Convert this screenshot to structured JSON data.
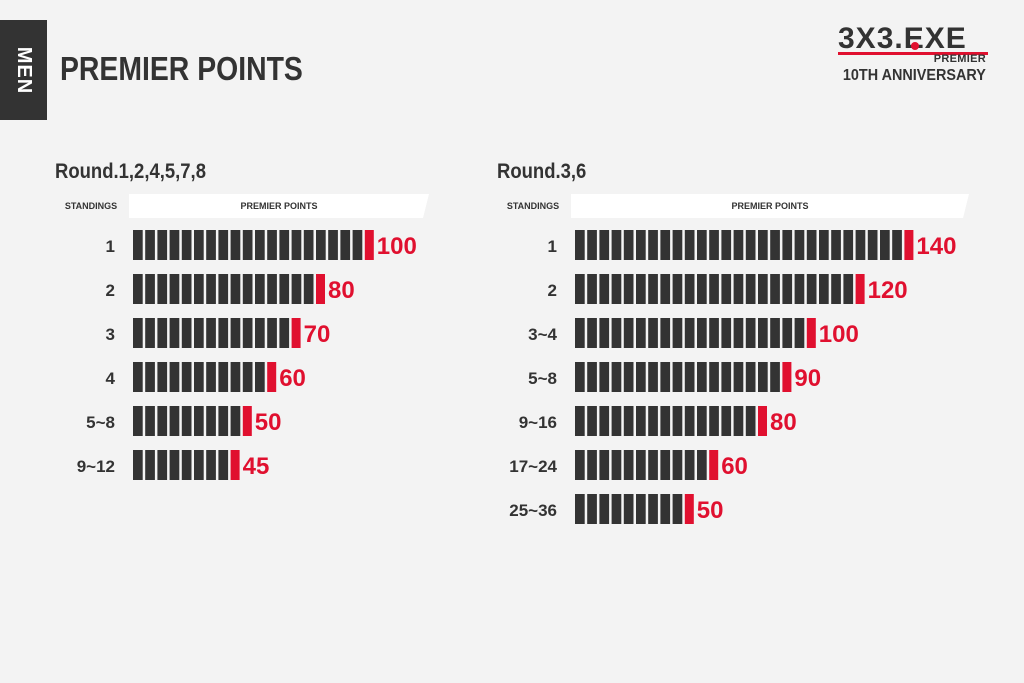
{
  "page": {
    "section_tab": "MEN",
    "title": "PREMIER POINTS"
  },
  "logo": {
    "wordmark": "3X3.EXE",
    "premier": "PREMIER",
    "anniversary": "10TH ANNIVERSARY"
  },
  "colors": {
    "bar_dark": "#333333",
    "bar_accent": "#e0102f",
    "value_text": "#e0102f",
    "background": "#f3f3f3"
  },
  "chart_data": [
    {
      "type": "bar",
      "title": "Round.1,2,4,5,7,8",
      "column_headers": {
        "standings": "STANDINGS",
        "points": "PREMIER POINTS"
      },
      "categories": [
        "1",
        "2",
        "3",
        "4",
        "5~8",
        "9~12"
      ],
      "values": [
        100,
        80,
        70,
        60,
        50,
        45
      ],
      "segment_points": 5,
      "xlim": [
        0,
        100
      ]
    },
    {
      "type": "bar",
      "title": "Round.3,6",
      "column_headers": {
        "standings": "STANDINGS",
        "points": "PREMIER POINTS"
      },
      "categories": [
        "1",
        "2",
        "3~4",
        "5~8",
        "9~16",
        "17~24",
        "25~36"
      ],
      "values": [
        140,
        120,
        100,
        90,
        80,
        60,
        50
      ],
      "segment_points": 5,
      "xlim": [
        0,
        140
      ]
    }
  ]
}
